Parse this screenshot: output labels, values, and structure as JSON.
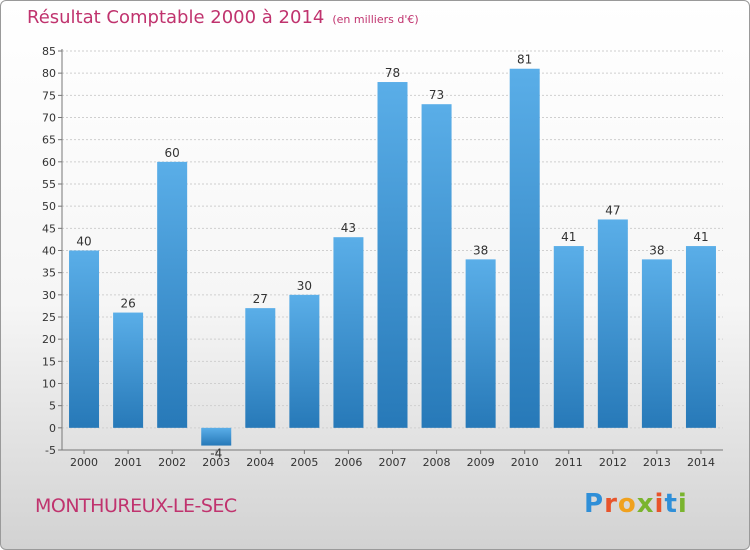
{
  "header": {
    "title": "Résultat Comptable 2000 à 2014",
    "unit": "(en milliers d'€)"
  },
  "footer": {
    "city": "MONTHUREUX-LE-SEC",
    "logo": [
      "P",
      "r",
      "o",
      "x",
      "i",
      "t",
      "i"
    ]
  },
  "colors": {
    "title": "#c0336e",
    "bar_top": "#5aaee8",
    "bar_bottom": "#2779b8",
    "logo": [
      "#2f8fd8",
      "#e8542b",
      "#f0a11e",
      "#7ab42e",
      "#e8542b",
      "#2f8fd8",
      "#7ab42e"
    ]
  },
  "chart_data": {
    "type": "bar",
    "title": "Résultat Comptable 2000 à 2014",
    "subtitle": "(en milliers d'€)",
    "xlabel": "",
    "ylabel": "",
    "categories": [
      "2000",
      "2001",
      "2002",
      "2003",
      "2004",
      "2005",
      "2006",
      "2007",
      "2008",
      "2009",
      "2010",
      "2011",
      "2012",
      "2013",
      "2014"
    ],
    "values": [
      40,
      26,
      60,
      -4,
      27,
      30,
      43,
      78,
      73,
      38,
      81,
      41,
      47,
      38,
      41
    ],
    "ylim": [
      -5,
      85
    ],
    "yticks": [
      -5,
      0,
      5,
      10,
      15,
      20,
      25,
      30,
      35,
      40,
      45,
      50,
      55,
      60,
      65,
      70,
      75,
      80,
      85
    ],
    "grid": true,
    "legend": "none"
  }
}
